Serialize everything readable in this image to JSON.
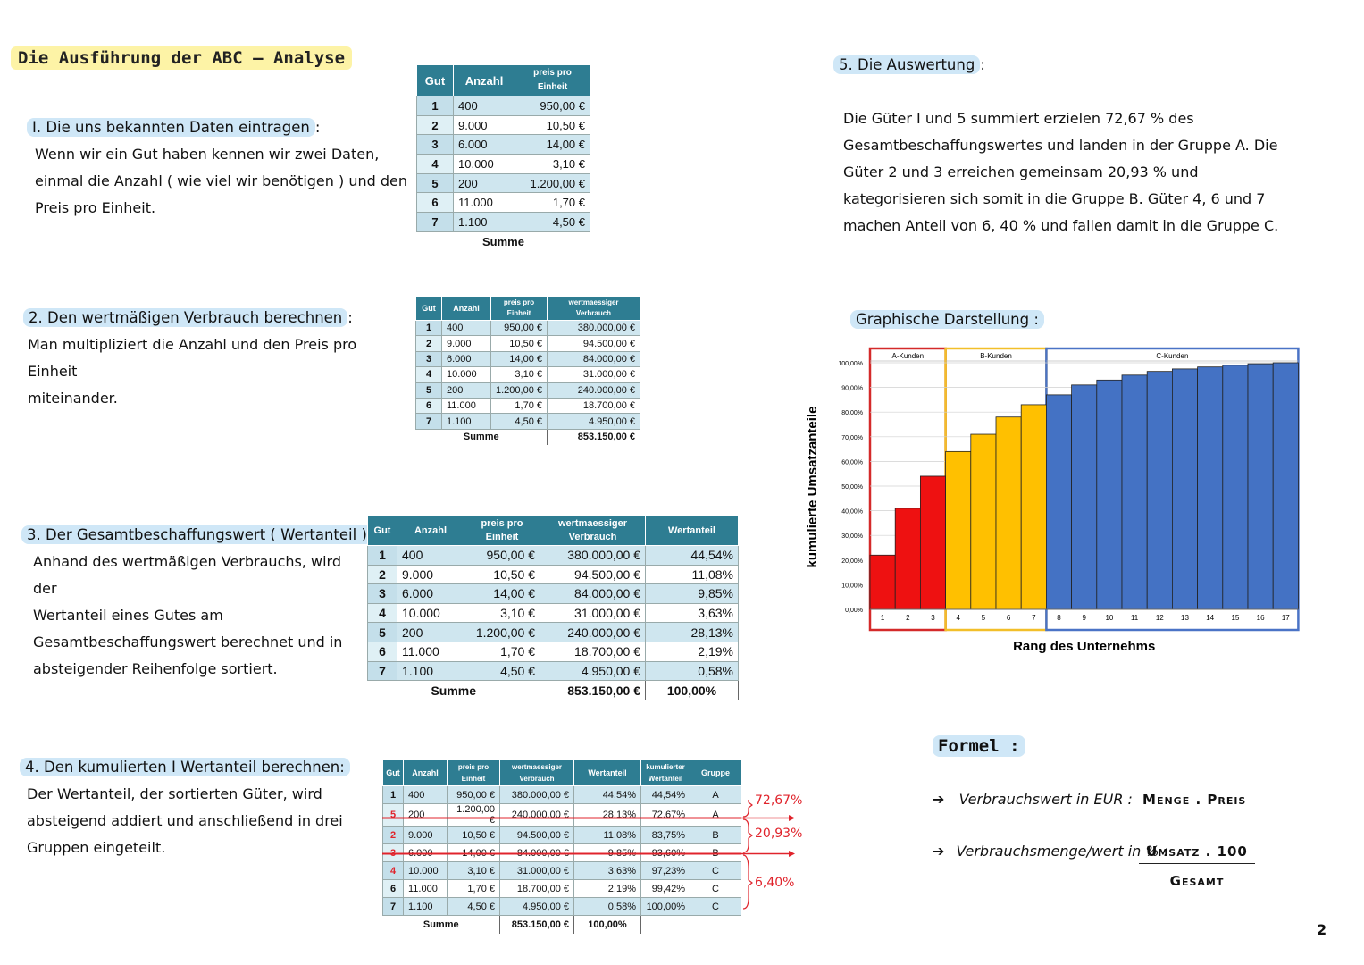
{
  "title": "Die Ausführung der ABC – Analyse",
  "page_number": "2",
  "step1": {
    "heading": "I.  Die uns bekannten Daten eintragen",
    "colon": ":",
    "lines": [
      "Wenn wir ein Gut haben kennen wir zwei Daten,",
      "einmal die Anzahl ( wie viel wir benötigen ) und den",
      "Preis pro Einheit."
    ]
  },
  "step2": {
    "heading": "2.  Den wertmäßigen Verbrauch berechnen",
    "colon": ":",
    "lines": [
      "Man multipliziert die Anzahl und den Preis pro Einheit",
      "miteinander."
    ]
  },
  "step3": {
    "heading": "3.  Der Gesamtbeschaffungswert ( Wertanteil )",
    "lines": [
      "Anhand des wertmäßigen Verbrauchs, wird der",
      "Wertanteil eines Gutes am",
      "Gesamtbeschaffungswert berechnet und in",
      "absteigender Reihenfolge sortiert."
    ]
  },
  "step4": {
    "heading": "4.  Den kumulierten I Wertanteil berechnen:",
    "lines": [
      "Der Wertanteil, der sortierten Güter, wird",
      "absteigend addiert und anschließend in drei",
      "Gruppen eingeteilt."
    ]
  },
  "step5": {
    "heading": "5.  Die Auswertung",
    "colon": ":",
    "lines": [
      "Die Güter I und 5 summiert erzielen 72,67 % des",
      "Gesamtbeschaffungswertes und landen in der Gruppe A. Die",
      "Güter 2 und 3 erreichen gemeinsam 20,93 % und",
      "kategorisieren sich somit in die Gruppe B. Güter 4, 6 und 7",
      "machen Anteil von 6, 40 % und fallen damit in die Gruppe C."
    ]
  },
  "graph_heading": "Graphische Darstellung :",
  "formel": {
    "title": "Formel :",
    "line1_label": "Verbrauchswert in EUR :",
    "line1_value": "Menge . Preis",
    "line2_label": "Verbrauchsmenge/wert in % :",
    "line2_numerator": "Umsatz .  100",
    "line2_denominator": "Gesamt",
    "arrow": "➔"
  },
  "table1": {
    "headers": [
      "Gut",
      "Anzahl",
      "preis pro\nEinheit"
    ],
    "rows": [
      [
        "1",
        "400",
        "950,00 €"
      ],
      [
        "2",
        "9.000",
        "10,50 €"
      ],
      [
        "3",
        "6.000",
        "14,00 €"
      ],
      [
        "4",
        "10.000",
        "3,10 €"
      ],
      [
        "5",
        "200",
        "1.200,00 €"
      ],
      [
        "6",
        "11.000",
        "1,70 €"
      ],
      [
        "7",
        "1.100",
        "4,50 €"
      ]
    ],
    "sum_label": "Summe"
  },
  "table2": {
    "headers": [
      "Gut",
      "Anzahl",
      "preis pro\nEinheit",
      "wertmaessiger\nVerbrauch"
    ],
    "rows": [
      [
        "1",
        "400",
        "950,00 €",
        "380.000,00 €"
      ],
      [
        "2",
        "9.000",
        "10,50 €",
        "94.500,00 €"
      ],
      [
        "3",
        "6.000",
        "14,00 €",
        "84.000,00 €"
      ],
      [
        "4",
        "10.000",
        "3,10 €",
        "31.000,00 €"
      ],
      [
        "5",
        "200",
        "1.200,00 €",
        "240.000,00 €"
      ],
      [
        "6",
        "11.000",
        "1,70 €",
        "18.700,00 €"
      ],
      [
        "7",
        "1.100",
        "4,50 €",
        "4.950,00 €"
      ]
    ],
    "sum_label": "Summe",
    "sum_value": "853.150,00 €"
  },
  "table3": {
    "headers": [
      "Gut",
      "Anzahl",
      "preis pro\nEinheit",
      "wertmaessiger\nVerbrauch",
      "Wertanteil"
    ],
    "rows": [
      [
        "1",
        "400",
        "950,00 €",
        "380.000,00 €",
        "44,54%"
      ],
      [
        "2",
        "9.000",
        "10,50 €",
        "94.500,00 €",
        "11,08%"
      ],
      [
        "3",
        "6.000",
        "14,00 €",
        "84.000,00 €",
        "9,85%"
      ],
      [
        "4",
        "10.000",
        "3,10 €",
        "31.000,00 €",
        "3,63%"
      ],
      [
        "5",
        "200",
        "1.200,00 €",
        "240.000,00 €",
        "28,13%"
      ],
      [
        "6",
        "11.000",
        "1,70 €",
        "18.700,00 €",
        "2,19%"
      ],
      [
        "7",
        "1.100",
        "4,50 €",
        "4.950,00 €",
        "0,58%"
      ]
    ],
    "sum_label": "Summe",
    "sum_value": "853.150,00 €",
    "sum_share": "100,00%"
  },
  "table4": {
    "headers": [
      "Gut",
      "Anzahl",
      "preis pro\nEinheit",
      "wertmaessiger\nVerbrauch",
      "Wertanteil",
      "kumulierter\nWertanteil",
      "Gruppe"
    ],
    "rows": [
      [
        "1",
        "400",
        "950,00 €",
        "380.000,00 €",
        "44,54%",
        "44,54%",
        "A"
      ],
      [
        "5",
        "200",
        "1.200,00 €",
        "240.000,00 €",
        "28,13%",
        "72,67%",
        "A"
      ],
      [
        "2",
        "9.000",
        "10,50 €",
        "94.500,00 €",
        "11,08%",
        "83,75%",
        "B"
      ],
      [
        "3",
        "6.000",
        "14,00 €",
        "84.000,00 €",
        "9,85%",
        "93,60%",
        "B"
      ],
      [
        "4",
        "10.000",
        "3,10 €",
        "31.000,00 €",
        "3,63%",
        "97,23%",
        "C"
      ],
      [
        "6",
        "11.000",
        "1,70 €",
        "18.700,00 €",
        "2,19%",
        "99,42%",
        "C"
      ],
      [
        "7",
        "1.100",
        "4,50 €",
        "4.950,00 €",
        "0,58%",
        "100,00%",
        "C"
      ]
    ],
    "sum_label": "Summe",
    "sum_value": "853.150,00 €",
    "sum_share": "100,00%",
    "bracket_labels": [
      "72,67%",
      "20,93%",
      "6,40%"
    ]
  },
  "chart_data": {
    "type": "bar",
    "xlabel": "Rang des Unternehms",
    "ylabel": "kumulierte Umsatzanteile",
    "ylim": [
      0,
      100
    ],
    "yticks": [
      "0,00%",
      "10,00%",
      "20,00%",
      "30,00%",
      "40,00%",
      "50,00%",
      "60,00%",
      "70,00%",
      "80,00%",
      "90,00%",
      "100,00%"
    ],
    "categories": [
      "1",
      "2",
      "3",
      "4",
      "5",
      "6",
      "7",
      "8",
      "9",
      "10",
      "11",
      "12",
      "13",
      "14",
      "15",
      "16",
      "17"
    ],
    "values": [
      22,
      41,
      54,
      64,
      71,
      78,
      83,
      87,
      91,
      93,
      95,
      96.5,
      97.5,
      98.3,
      99,
      99.6,
      100
    ],
    "groups": [
      {
        "name": "A-Kunden",
        "start": 0,
        "end": 2,
        "color": "#ee1111",
        "border": "#d42a2a"
      },
      {
        "name": "B-Kunden",
        "start": 3,
        "end": 6,
        "color": "#ffc000",
        "border": "#f2bf2a"
      },
      {
        "name": "C-Kunden",
        "start": 7,
        "end": 16,
        "color": "#4472c4",
        "border": "#4a73c6"
      }
    ]
  }
}
